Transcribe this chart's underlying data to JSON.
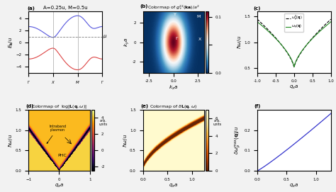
{
  "title_a": "A=0.25u, M=0.5u",
  "title_b": "Colormap of $g_{+}^{22}(\\mathbf{ka})/a^2$",
  "title_d": "Colormap of  $\\log|\\mathbf{L}(\\mathbf{q},\\omega)|$",
  "title_e": "Colormap of $\\delta\\mathbf{L}(\\mathbf{q},\\omega)$",
  "label_a_y": "$E_{\\mathbf{k}}/u$",
  "label_b_x": "$k_x a$",
  "label_b_y": "$k_y a$",
  "label_c_x": "$q_x a$",
  "label_c_y": "$\\hbar\\omega / u$",
  "label_d_x": "$q_x a$",
  "label_d_y": "$\\hbar\\omega / u$",
  "label_e_x": "$q_x a$",
  "label_e_y": "$\\hbar\\omega / u$",
  "label_f_x": "$q_x a$",
  "label_f_y": "$\\delta\\omega_p^{\\max}(\\mathbf{q})/u$",
  "mu_label": "$\\mu$",
  "band_blue": "#5555dd",
  "band_red": "#dd4444",
  "mu_value": 1.0,
  "bg_color": "#f2f2f2"
}
